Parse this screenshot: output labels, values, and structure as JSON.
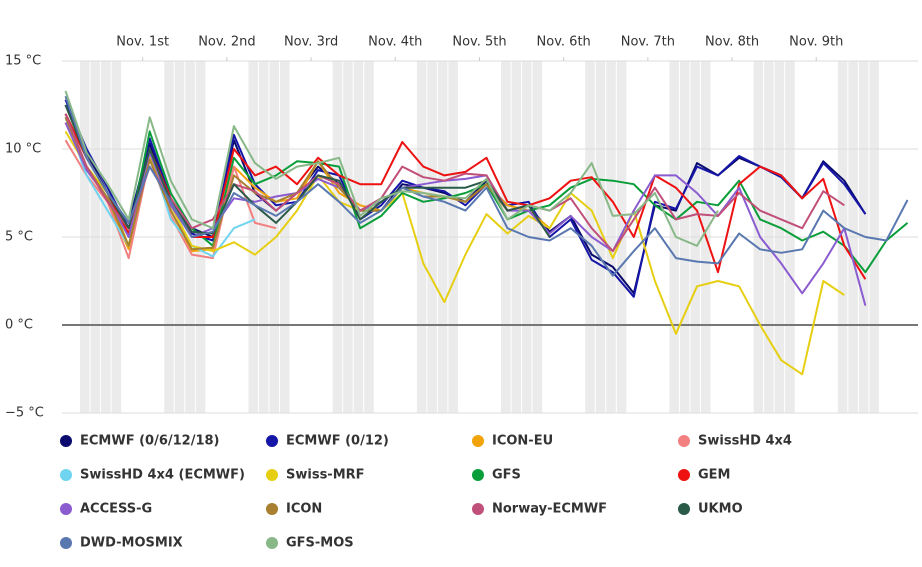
{
  "chart_data": {
    "type": "line",
    "x": [
      -10,
      -4,
      2,
      8,
      14,
      20,
      26,
      32,
      38,
      44,
      50,
      56,
      62,
      68,
      74,
      80,
      86,
      92,
      98,
      104,
      110,
      116,
      122,
      128,
      134,
      140,
      146,
      152,
      158,
      164,
      170,
      176,
      182,
      188,
      194,
      200,
      206,
      212,
      218,
      224,
      230
    ],
    "xlim": [
      -11,
      233
    ],
    "xticks": [
      {
        "value": 12,
        "label": "Nov. 1st"
      },
      {
        "value": 36,
        "label": "Nov. 2nd"
      },
      {
        "value": 60,
        "label": "Nov. 3rd"
      },
      {
        "value": 84,
        "label": "Nov. 4th"
      },
      {
        "value": 108,
        "label": "Nov. 5th"
      },
      {
        "value": 132,
        "label": "Nov. 6th"
      },
      {
        "value": 156,
        "label": "Nov. 7th"
      },
      {
        "value": 180,
        "label": "Nov. 8th"
      },
      {
        "value": 204,
        "label": "Nov. 9th"
      }
    ],
    "ylim": [
      -5,
      15
    ],
    "yticks": [
      {
        "value": -5,
        "label": "−5 °C"
      },
      {
        "value": 0,
        "label": "0 °C"
      },
      {
        "value": 5,
        "label": "5 °C"
      },
      {
        "value": 10,
        "label": "10 °C"
      },
      {
        "value": 15,
        "label": "15 °C"
      }
    ],
    "series": [
      {
        "name": "ECMWF (0/6/12/18)",
        "color": "#0a0a6e",
        "values": [
          12.5,
          9.8,
          7.5,
          5.8,
          10.3,
          7,
          5.5,
          5,
          10.5,
          7.5,
          6.5,
          7.5,
          9,
          8,
          6.5,
          6.5,
          8,
          7.8,
          7.5,
          7,
          8.2,
          6.5,
          6.8,
          5.3,
          6.2,
          4,
          3.3,
          1.8,
          6.8,
          6.5,
          9.2,
          8.5,
          9.5,
          9,
          8.5,
          7.2,
          9.3,
          8.2,
          6.3,
          null,
          null
        ]
      },
      {
        "name": "ECMWF (0/12)",
        "color": "#1515a8",
        "values": [
          12.8,
          10,
          7.8,
          5.5,
          10.6,
          7.2,
          5.2,
          4.8,
          10.8,
          8,
          6.8,
          7,
          8.8,
          8.5,
          6,
          6.8,
          8.2,
          7.8,
          7.6,
          6.8,
          8,
          6.8,
          7,
          5,
          6,
          3.7,
          3,
          1.6,
          7,
          6.6,
          9,
          8.5,
          9.6,
          9,
          8.4,
          7.2,
          9.2,
          8,
          6.3,
          null,
          null
        ]
      },
      {
        "name": "ICON-EU",
        "color": "#f0a30a",
        "values": [
          11.5,
          9,
          7,
          4.3,
          9.6,
          6.5,
          4.2,
          4.3,
          9,
          7.8,
          7,
          7.2,
          9.3,
          7.5,
          6.8,
          6.5,
          7.8,
          7.5,
          7.3,
          7,
          8,
          6.8,
          6.5,
          5.5,
          null,
          null,
          null,
          null,
          null,
          null,
          null,
          null,
          null,
          null,
          null,
          null,
          null,
          null,
          null,
          null,
          null
        ]
      },
      {
        "name": "SwissHD 4x4",
        "color": "#f28080",
        "values": [
          10.5,
          8.5,
          7,
          3.8,
          9.5,
          6.2,
          4,
          3.8,
          9,
          5.8,
          5.5,
          null,
          null,
          null,
          null,
          null,
          null,
          null,
          null,
          null,
          null,
          null,
          null,
          null,
          null,
          null,
          null,
          null,
          null,
          null,
          null,
          null,
          null,
          null,
          null,
          null,
          null,
          null,
          null,
          null,
          null
        ]
      },
      {
        "name": "SwissHD 4x4 (ECMWF)",
        "color": "#6fd4f0",
        "values": [
          11.8,
          8.5,
          6.5,
          4.5,
          9.8,
          6,
          4.5,
          3.9,
          5.5,
          6,
          null,
          null,
          null,
          null,
          null,
          null,
          null,
          null,
          null,
          null,
          null,
          null,
          null,
          null,
          null,
          null,
          null,
          null,
          null,
          null,
          null,
          null,
          null,
          null,
          null,
          null,
          null,
          null,
          null,
          null,
          null
        ]
      },
      {
        "name": "Swiss-MRF",
        "color": "#e6cf12",
        "values": [
          11,
          9,
          7.5,
          4.5,
          9.5,
          6.8,
          4.5,
          4.2,
          4.7,
          4,
          5,
          6.5,
          8.5,
          7,
          6.5,
          6.5,
          7.5,
          3.5,
          1.3,
          4,
          6.3,
          5.2,
          6.2,
          5.5,
          7.5,
          6.5,
          3.8,
          6.5,
          2.5,
          -0.5,
          2.2,
          2.5,
          2.2,
          0,
          -2,
          -2.8,
          2.5,
          1.7,
          null,
          null,
          null
        ]
      },
      {
        "name": "GFS",
        "color": "#0a9e3a",
        "values": [
          12,
          9.5,
          7.5,
          5,
          11,
          7.5,
          5.5,
          4.5,
          9.5,
          8,
          8.5,
          9.3,
          9.2,
          9,
          5.5,
          6.2,
          7.5,
          7,
          7.2,
          7.5,
          8,
          6,
          6.5,
          6.8,
          7.8,
          8.3,
          8.2,
          8,
          6.8,
          6,
          7,
          6.8,
          8.2,
          6,
          5.5,
          4.8,
          5.3,
          4.5,
          3,
          4.8,
          5.8
        ]
      },
      {
        "name": "GEM",
        "color": "#ee1111",
        "values": [
          12,
          9.5,
          7.5,
          5.2,
          10,
          7.2,
          5,
          5,
          10,
          8.5,
          9,
          8,
          9.5,
          8.5,
          8,
          8,
          10.4,
          9,
          8.5,
          8.7,
          9.5,
          7,
          6.8,
          7.2,
          8.2,
          8.4,
          7,
          5,
          8.5,
          7.8,
          6.5,
          3,
          8,
          9,
          8.5,
          7.2,
          8.3,
          4.5,
          2.6,
          null,
          null
        ]
      },
      {
        "name": "ACCESS-G",
        "color": "#8a5cd0",
        "values": [
          11.5,
          8.8,
          7.2,
          5,
          9.8,
          6.8,
          5,
          5.5,
          7.2,
          7,
          7.3,
          7.5,
          8.3,
          7.8,
          6.5,
          7,
          7.8,
          8,
          8.2,
          8.3,
          8.5,
          6.5,
          6.5,
          5.2,
          6.2,
          5,
          4.2,
          6.5,
          8.5,
          8.5,
          7.5,
          6.2,
          7.8,
          5,
          3.5,
          1.8,
          3.5,
          5.5,
          1.1,
          null,
          null
        ]
      },
      {
        "name": "ICON",
        "color": "#a88030",
        "values": [
          11.8,
          9,
          7.2,
          4.5,
          9.4,
          6.5,
          4.3,
          4.4,
          8.5,
          7.5,
          7,
          7.5,
          9.3,
          7.8,
          6.5,
          6.5,
          7.8,
          7.3,
          7.3,
          7,
          8,
          6.5,
          null,
          null,
          null,
          null,
          null,
          null,
          null,
          null,
          null,
          null,
          null,
          null,
          null,
          null,
          null,
          null,
          null,
          null,
          null
        ]
      },
      {
        "name": "Norway-ECMWF",
        "color": "#c0507a",
        "values": [
          12,
          9,
          7,
          5.5,
          9,
          7.2,
          5.5,
          6,
          8,
          7.6,
          6.5,
          7.5,
          8.5,
          8,
          6.5,
          7.2,
          9,
          8.4,
          8.2,
          8.6,
          8.5,
          6.5,
          6.8,
          6.5,
          7.2,
          5.5,
          4.2,
          6,
          7.8,
          6,
          6.3,
          6.2,
          7.5,
          6.5,
          6,
          5.5,
          7.6,
          6.8,
          null,
          null,
          null
        ]
      },
      {
        "name": "UKMO",
        "color": "#2a5a48",
        "values": [
          12.5,
          9.5,
          7.5,
          5.5,
          10,
          7,
          5.3,
          5.2,
          8,
          6.8,
          5.8,
          7,
          8.5,
          8.2,
          6,
          7,
          7.8,
          7.8,
          7.8,
          7.8,
          8.2,
          6.5,
          6.8,
          5,
          null,
          null,
          null,
          null,
          null,
          null,
          null,
          null,
          null,
          null,
          null,
          null,
          null,
          null,
          null,
          null,
          null
        ]
      },
      {
        "name": "DWD-MOSMIX",
        "color": "#5a78b0",
        "values": [
          13,
          9.5,
          7.5,
          5.8,
          9,
          7,
          5,
          5.3,
          7.5,
          6.8,
          6.2,
          7,
          8,
          7,
          5.8,
          6.5,
          7.8,
          7.3,
          7,
          6.5,
          7.8,
          5.5,
          5,
          4.8,
          5.5,
          4.5,
          2.8,
          4.2,
          5.5,
          3.8,
          3.6,
          3.5,
          5.2,
          4.3,
          4.1,
          4.3,
          6.5,
          5.5,
          5,
          4.8,
          7.1
        ]
      },
      {
        "name": "GFS-MOS",
        "color": "#88b888",
        "values": [
          13.3,
          9.8,
          8,
          6,
          11.8,
          8.2,
          6,
          5.5,
          11.3,
          9.2,
          8.3,
          9,
          9.2,
          9.5,
          6.2,
          7.2,
          7.6,
          7.5,
          7.3,
          7.2,
          8.3,
          6,
          6.8,
          6.5,
          7.5,
          9.2,
          6.2,
          6.3,
          7.5,
          5,
          4.5,
          6.5,
          null,
          null,
          null,
          null,
          null,
          null,
          null,
          null,
          null
        ]
      }
    ]
  }
}
